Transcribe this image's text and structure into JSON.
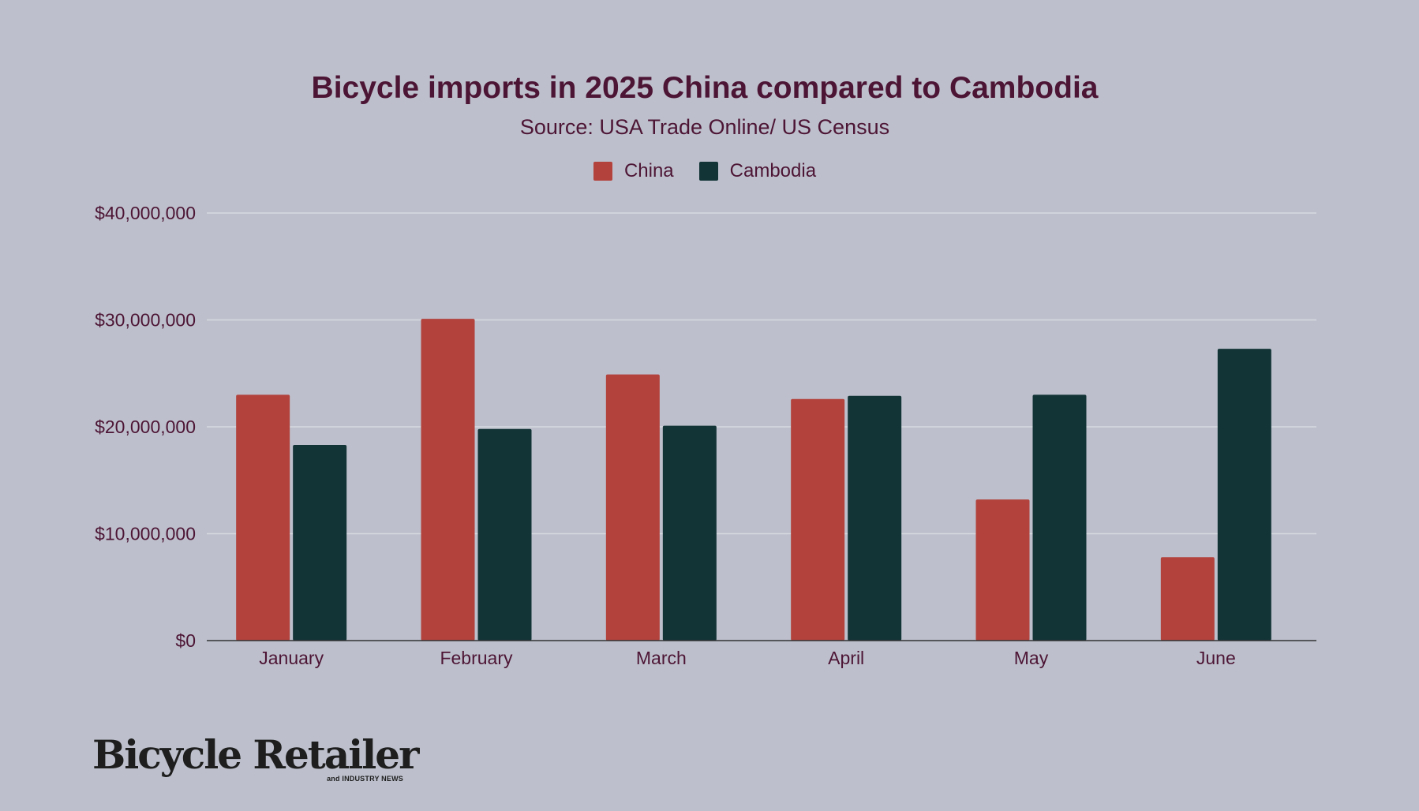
{
  "chart_data": {
    "type": "bar",
    "title": "Bicycle imports in 2025 China compared to Cambodia",
    "subtitle": "Source: USA Trade Online/ US Census",
    "categories": [
      "January",
      "February",
      "March",
      "April",
      "May",
      "June"
    ],
    "series": [
      {
        "name": "China",
        "color": "#b3423c",
        "values": [
          23000000,
          30100000,
          24900000,
          22600000,
          13200000,
          7800000
        ]
      },
      {
        "name": "Cambodia",
        "color": "#133437",
        "values": [
          18300000,
          19800000,
          20100000,
          22900000,
          23000000,
          27300000
        ]
      }
    ],
    "ylim": [
      0,
      40000000
    ],
    "yticks": [
      0,
      10000000,
      20000000,
      30000000,
      40000000
    ],
    "ytick_labels": [
      "$0",
      "$10,000,000",
      "$20,000,000",
      "$30,000,000",
      "$40,000,000"
    ],
    "xlabel": "",
    "ylabel": "",
    "grid": true,
    "legend_position": "top-center"
  },
  "logo": {
    "main": "Bicycle Retailer",
    "sub": "and INDUSTRY NEWS"
  },
  "colors": {
    "background": "#bdc0cc",
    "text": "#4d1535",
    "grid": "#d7d9e0",
    "axis": "#333333"
  }
}
